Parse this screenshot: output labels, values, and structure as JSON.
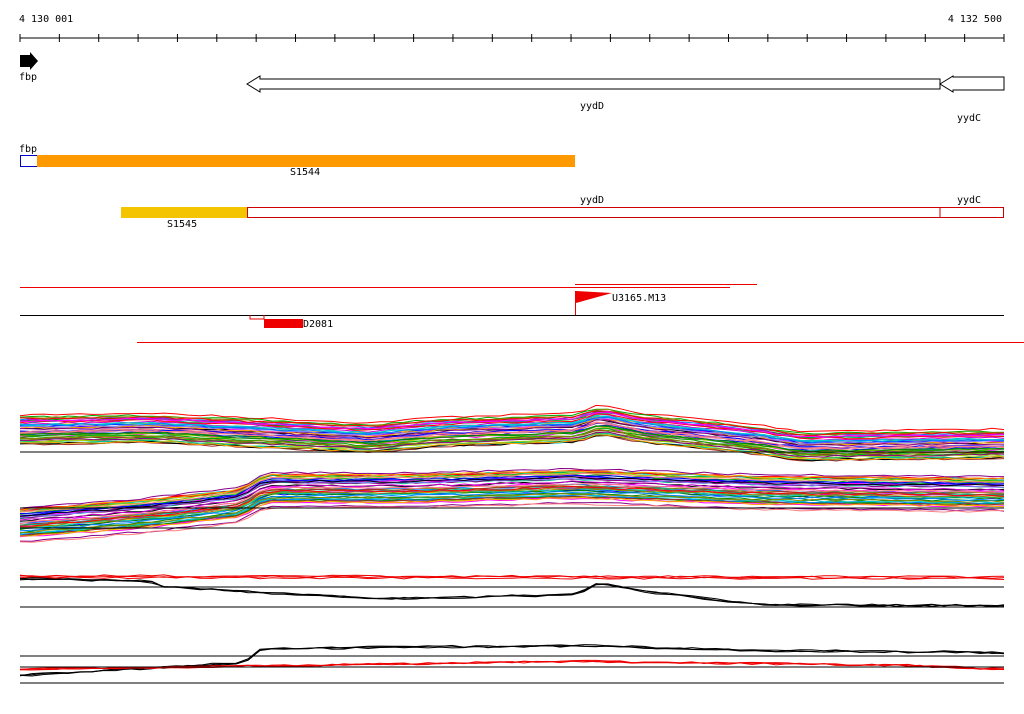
{
  "ruler": {
    "start": "4 130 001",
    "end": "4 132 500"
  },
  "genes": [
    {
      "label": "fbp"
    },
    {
      "label": "yydD"
    },
    {
      "label": "yydC"
    }
  ],
  "segments": [
    {
      "label": "fbp"
    },
    {
      "label": "S1544"
    },
    {
      "label": "S1545"
    },
    {
      "label": "yydD"
    },
    {
      "label": "yydC"
    }
  ],
  "features": [
    {
      "label": "U3165.M13"
    },
    {
      "label": "D2081"
    }
  ]
}
